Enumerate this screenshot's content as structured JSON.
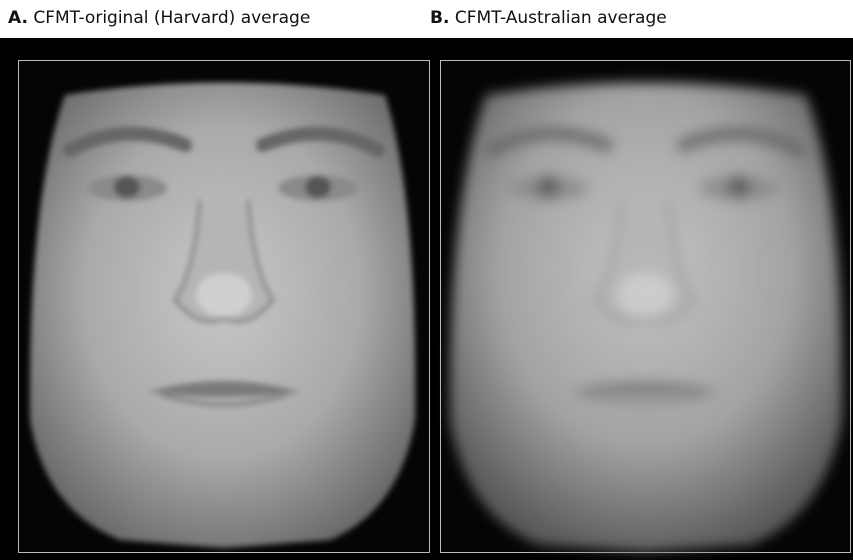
{
  "panels": [
    {
      "letter": "A.",
      "label": "CFMT-original (Harvard) average"
    },
    {
      "letter": "B.",
      "label": "CFMT-Australian average"
    }
  ]
}
